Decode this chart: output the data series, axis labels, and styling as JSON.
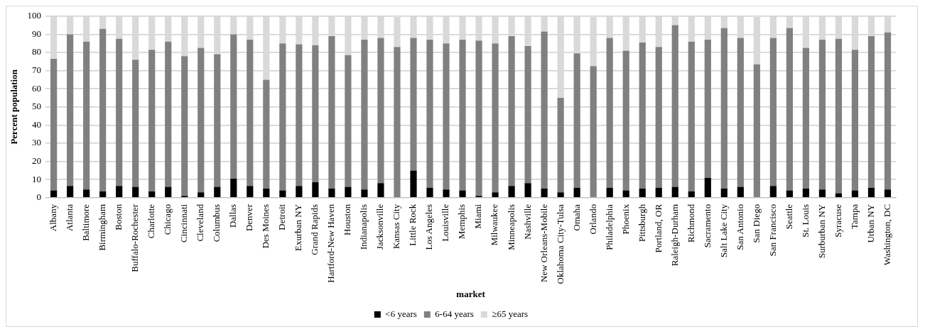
{
  "chart_data": {
    "type": "bar",
    "stacked": true,
    "xlabel": "market",
    "ylabel": "Percent population",
    "categories": [
      "Albany",
      "Atlanta",
      "Baltimore",
      "Birmingham",
      "Boston",
      "Buffalo-Rochester",
      "Charlotte",
      "Chicago",
      "Cincinnati",
      "Cleveland",
      "Columbus",
      "Dallas",
      "Denver",
      "Des Moines",
      "Detroit",
      "Exurban NY",
      "Grand Rapids",
      "Hartford-New Haven",
      "Houston",
      "Indianapolis",
      "Jacksonville",
      "Kansas City",
      "Little Rock",
      "Los Angeles",
      "Louisville",
      "Memphis",
      "Miami",
      "Milwaukee",
      "Minneapolis",
      "Nashville",
      "New Orleans-Mobile",
      "Oklahoma City-Tulsa",
      "Omaha",
      "Orlando",
      "Philadelphia",
      "Phoenix",
      "Pittsburgh",
      "Portland, OR",
      "Raleigh-Durham",
      "Richmond",
      "Sacramento",
      "Salt Lake City",
      "San Antonio",
      "San Diego",
      "San Francisco",
      "Seattle",
      "St. Louis",
      "Surburban NY",
      "Syracuse",
      "Tampa",
      "Urban NY",
      "Washington, DC"
    ],
    "series": [
      {
        "name": "<6 years",
        "color": "#000000",
        "values": [
          4,
          6.5,
          4.5,
          3.5,
          6.5,
          6,
          3.5,
          6,
          1,
          3,
          6,
          10.5,
          6.5,
          5,
          4,
          6.5,
          8.5,
          5,
          6,
          4.5,
          8,
          null,
          15,
          5.5,
          4.5,
          4,
          1,
          3,
          6.5,
          8,
          5,
          3,
          5.5,
          null,
          5.5,
          4,
          5,
          5.5,
          6,
          3.5,
          11,
          5,
          6,
          null,
          6.5,
          4,
          5,
          4.5,
          2.5,
          4,
          5.5,
          4.5
        ]
      },
      {
        "name": "6-64 years",
        "color": "#808080",
        "values": [
          72.5,
          83.5,
          81.5,
          89.5,
          81,
          70,
          78,
          80,
          77,
          79.5,
          73,
          79.5,
          80.5,
          60,
          81,
          78,
          75.5,
          84,
          72.5,
          82.5,
          80,
          83,
          73,
          81.5,
          80.5,
          83,
          85.5,
          82,
          82.5,
          75.5,
          86.5,
          52,
          74,
          72.5,
          82.5,
          77,
          80.5,
          77.5,
          89,
          82.5,
          76,
          88.5,
          82,
          73.5,
          81.5,
          89.5,
          77.5,
          82.5,
          85,
          77.5,
          83.5,
          86.5
        ]
      },
      {
        "name": "≥65 years",
        "color": "#d9d9d9",
        "values": [
          23.5,
          10,
          14,
          7,
          12.5,
          24,
          18.5,
          14,
          22,
          17.5,
          21,
          10,
          13,
          35,
          15,
          15.5,
          16,
          11,
          21.5,
          13,
          12,
          16.5,
          12,
          13,
          15,
          13,
          13.5,
          15,
          11,
          16.5,
          8.5,
          45,
          20.5,
          27,
          12,
          19,
          14.5,
          17,
          5,
          14,
          13,
          6.5,
          12,
          26,
          12,
          6.5,
          17.5,
          13,
          12.5,
          18.5,
          11,
          9
        ]
      }
    ],
    "ylim": [
      0,
      100
    ],
    "yticks": [
      0,
      10,
      20,
      30,
      40,
      50,
      60,
      70,
      80,
      90,
      100
    ],
    "grid": "y",
    "legend": "bottom"
  }
}
